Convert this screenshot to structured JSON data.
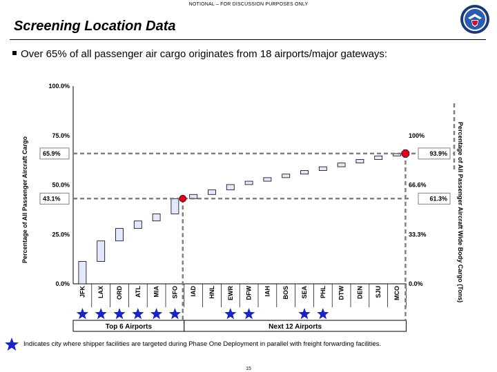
{
  "banner": "NOTIONAL – FOR DISCUSSION PURPOSES ONLY",
  "title": "Screening Location Data",
  "bullet": "Over 65% of all passenger air cargo originates from 18 airports/major gateways:",
  "seal_icon": "dhs-seal-icon",
  "legend": {
    "icon": "star-icon",
    "color": "#1a22c8",
    "text": "Indicates city where  shipper facilities are targeted during Phase One Deployment in parallel with freight forwarding facilities."
  },
  "page_number": "15",
  "chart_data": {
    "type": "bar",
    "ylabel_left": "Percentage of All Passenger Aircraft Cargo",
    "ylabel_right": "Percentage of All Passenger Aircraft Wide Body Cargo (Tons)",
    "categories": [
      "JFK",
      "LAX",
      "ORD",
      "ATL",
      "MIA",
      "SFO",
      "IAD",
      "HNL",
      "EWR",
      "DFW",
      "IAH",
      "BOS",
      "SEA",
      "PHL",
      "DTW",
      "DEN",
      "SJU",
      "MCO"
    ],
    "cumulative_low": [
      0.0,
      11.3,
      21.7,
      28.0,
      31.8,
      35.4,
      43.1,
      45.2,
      47.5,
      50.2,
      51.9,
      53.7,
      55.5,
      57.3,
      59.2,
      61.1,
      62.9,
      64.7
    ],
    "cumulative_high": [
      11.3,
      21.7,
      28.0,
      31.8,
      35.4,
      43.1,
      45.2,
      47.5,
      50.2,
      51.9,
      53.7,
      55.5,
      57.3,
      59.2,
      61.1,
      62.9,
      64.7,
      65.9
    ],
    "star_marked": [
      "JFK",
      "LAX",
      "ORD",
      "ATL",
      "MIA",
      "SFO",
      "EWR",
      "DFW",
      "SEA",
      "PHL"
    ],
    "ylim": [
      0,
      100
    ],
    "left_ticks": [
      "100.0%",
      "75.0%",
      "50.0%",
      "25.0%",
      "0.0%"
    ],
    "right_ticks": [
      "100%",
      "66.6%",
      "33.3%",
      "0.0%"
    ],
    "callouts_left": [
      "65.9%",
      "43.1%"
    ],
    "callouts_right": [
      "93.9%",
      "61.3%"
    ],
    "groups": [
      {
        "label": "Top 6 Airports",
        "count": 6
      },
      {
        "label": "Next 12 Airports",
        "count": 12
      }
    ],
    "markers": [
      {
        "after_category": "SFO",
        "value": 43.1,
        "color": "#e0001b"
      },
      {
        "after_category": "MCO",
        "value": 65.9,
        "color": "#e0001b"
      }
    ],
    "bar_fill": "#e4e8ff",
    "dash_color": "#7f7f7f"
  }
}
